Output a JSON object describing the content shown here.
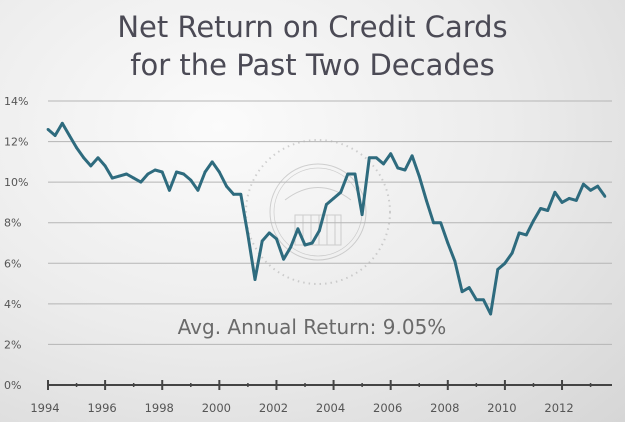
{
  "chart_data": {
    "type": "line",
    "title_line1": "Net Return on Credit Cards",
    "title_line2": "for the Past Two Decades",
    "annotation": "Avg. Annual Return: 9.05%",
    "xlabel": "",
    "ylabel": "",
    "x_start": "1994 Q1",
    "x_frequency": "quarterly",
    "xlim": [
      1994,
      2013.75
    ],
    "ylim": [
      0,
      14
    ],
    "x_ticks": [
      "1994",
      "1996",
      "1998",
      "2000",
      "2002",
      "2004",
      "2006",
      "2008",
      "2010",
      "2012"
    ],
    "y_ticks": [
      "0%",
      "2%",
      "4%",
      "6%",
      "8%",
      "10%",
      "12%",
      "14%"
    ],
    "grid": "horizontal",
    "line_color": "#2e6b7e",
    "values": [
      12.6,
      12.3,
      12.9,
      12.3,
      11.7,
      11.2,
      10.8,
      11.2,
      10.8,
      10.2,
      10.3,
      10.4,
      10.2,
      10.0,
      10.4,
      10.6,
      10.5,
      9.6,
      10.5,
      10.4,
      10.1,
      9.6,
      10.5,
      11.0,
      10.5,
      9.8,
      9.4,
      9.4,
      7.4,
      5.2,
      7.1,
      7.5,
      7.2,
      6.2,
      6.8,
      7.7,
      6.9,
      7.0,
      7.6,
      8.9,
      9.2,
      9.5,
      10.4,
      10.4,
      8.4,
      11.2,
      11.2,
      10.9,
      11.4,
      10.7,
      10.6,
      11.3,
      10.3,
      9.1,
      8.0,
      8.0,
      7.0,
      6.1,
      4.6,
      4.8,
      4.2,
      4.2,
      3.5,
      5.7,
      6.0,
      6.5,
      7.5,
      7.4,
      8.1,
      8.7,
      8.6,
      9.5,
      9.0,
      9.2,
      9.1,
      9.9,
      9.6,
      9.8,
      9.3
    ]
  },
  "watermark": {
    "seal_text_top": "BOARD OF GOVERNORS",
    "seal_text_bottom": "OF THE FEDERAL RESERVE SYSTEM"
  }
}
